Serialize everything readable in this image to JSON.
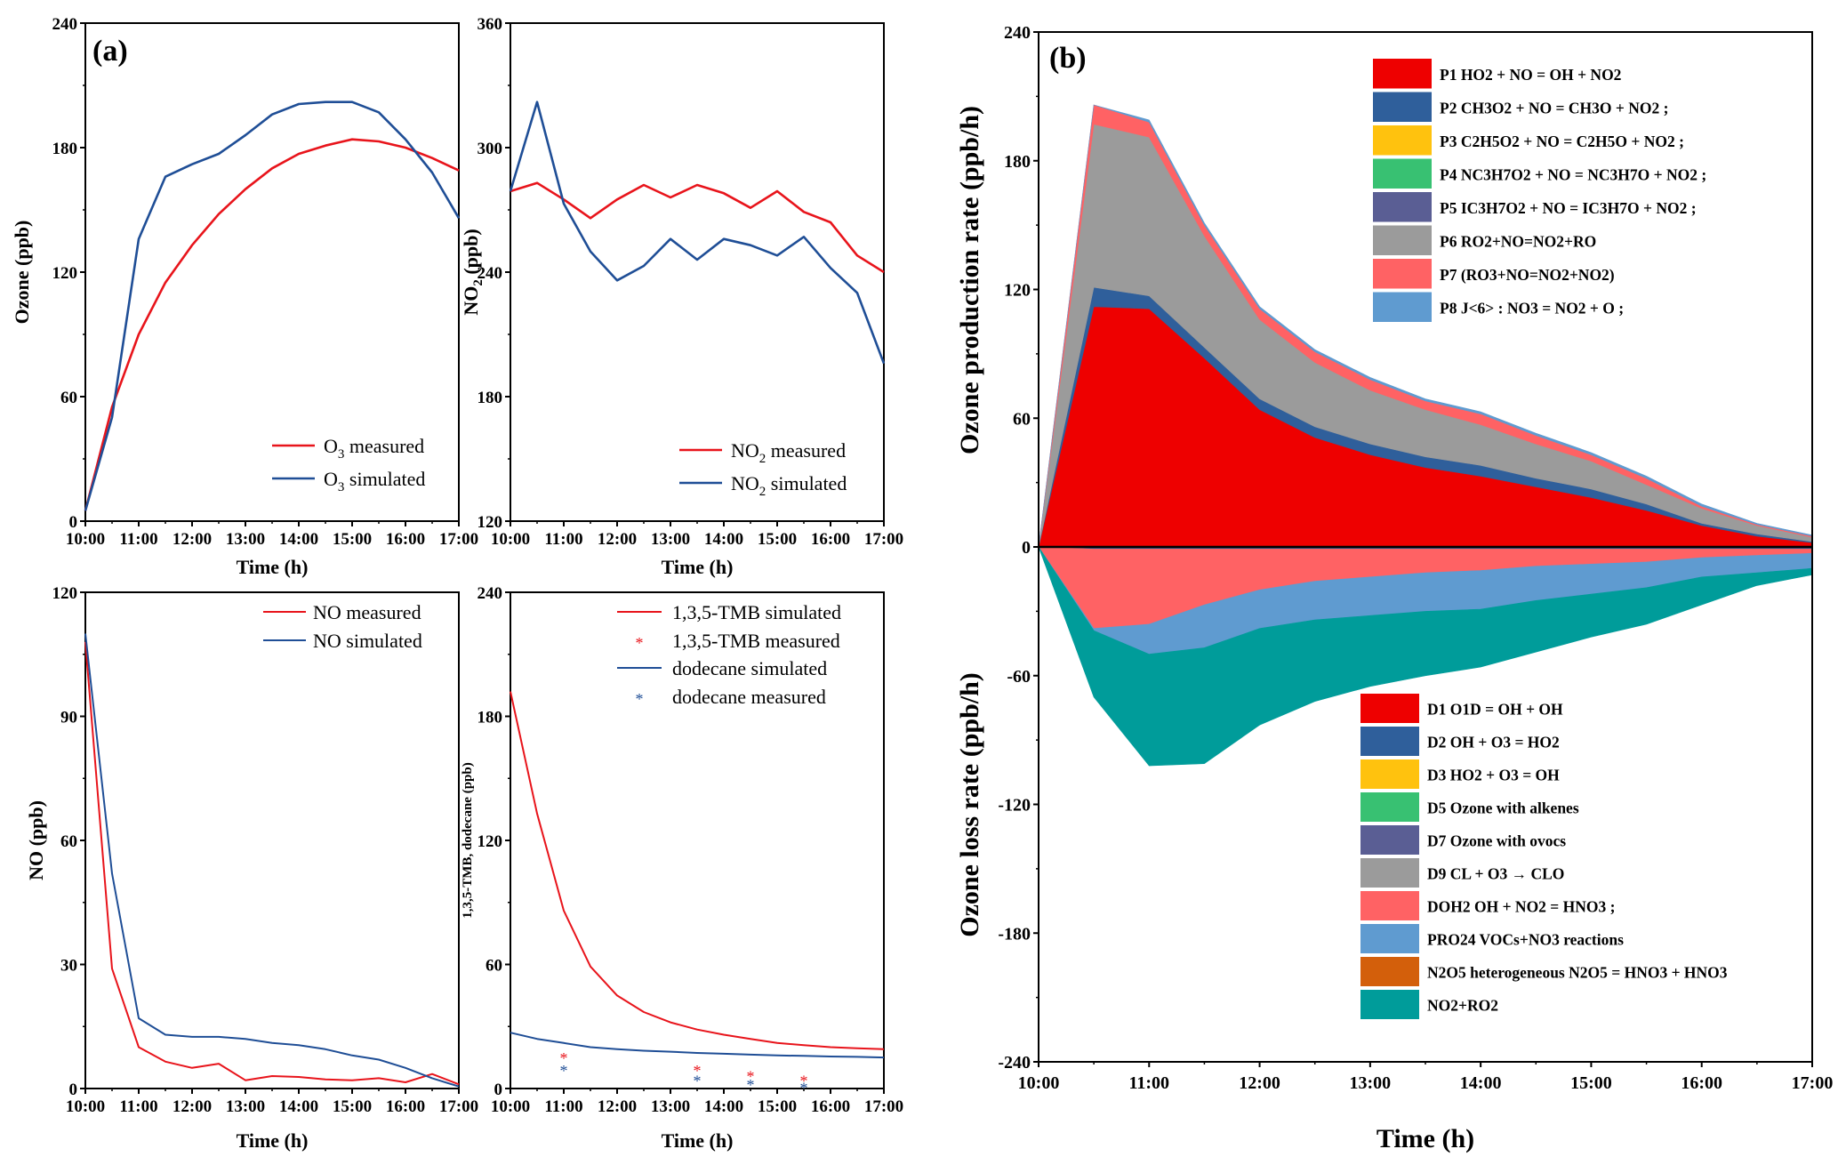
{
  "colors": {
    "red": "#e8141b",
    "blue": "#1f4e96",
    "P1": "#ee0000",
    "P2": "#2f5f9b",
    "P3": "#ffc20e",
    "P4": "#38c172",
    "P5": "#5a5e94",
    "P6": "#9b9b9b",
    "P7": "#ff6264",
    "P8": "#5f9bd0",
    "D1": "#ee0000",
    "D2": "#2f5f9b",
    "D3": "#ffc20e",
    "D5": "#38c172",
    "D7": "#5a5e94",
    "D9": "#9b9b9b",
    "DOH2": "#ff6264",
    "PRO24": "#5f9bd0",
    "N2O5": "#d35f0b",
    "NO2RO2": "#009c9a"
  },
  "time_ticks": [
    "10:00",
    "11:00",
    "12:00",
    "13:00",
    "14:00",
    "15:00",
    "16:00",
    "17:00"
  ],
  "chart_data": [
    {
      "id": "ozone",
      "panel_label": "(a)",
      "type": "line",
      "xlabel": "Time (h)",
      "ylabel": "Ozone (ppb)",
      "xlim": [
        10,
        17
      ],
      "ylim": [
        0,
        240
      ],
      "yticks": [
        "0",
        "60",
        "120",
        "180",
        "240"
      ],
      "series": [
        {
          "name": "O3 measured",
          "label_main": "O",
          "label_sub": "3",
          "label_rest": " measured",
          "color": "#e8141b",
          "x": [
            10,
            10.5,
            11,
            11.5,
            12,
            12.5,
            13,
            13.5,
            14,
            14.5,
            15,
            15.5,
            16,
            16.5,
            17
          ],
          "y": [
            5,
            55,
            90,
            115,
            133,
            148,
            160,
            170,
            177,
            181,
            184,
            183,
            180,
            175,
            169
          ]
        },
        {
          "name": "O3 simulated",
          "label_main": "O",
          "label_sub": "3",
          "label_rest": " simulated",
          "color": "#1f4e96",
          "x": [
            10,
            10.5,
            11,
            11.5,
            12,
            12.5,
            13,
            13.5,
            14,
            14.5,
            15,
            15.5,
            16,
            16.5,
            17
          ],
          "y": [
            5,
            50,
            136,
            166,
            172,
            177,
            186,
            196,
            201,
            202,
            202,
            197,
            184,
            168,
            146
          ]
        }
      ]
    },
    {
      "id": "no2",
      "type": "line",
      "xlabel": "Time (h)",
      "ylabel_main": "NO",
      "ylabel_sub": "2",
      "ylabel_rest": " (ppb)",
      "xlim": [
        10,
        17
      ],
      "ylim": [
        120,
        360
      ],
      "yticks": [
        "120",
        "180",
        "240",
        "300",
        "360"
      ],
      "series": [
        {
          "name": "NO2 measured",
          "label_main": "NO",
          "label_sub": "2",
          "label_rest": " measured",
          "color": "#e8141b",
          "x": [
            10,
            10.5,
            11,
            11.5,
            12,
            12.5,
            13,
            13.5,
            14,
            14.5,
            15,
            15.5,
            16,
            16.5,
            17
          ],
          "y": [
            279,
            283,
            275,
            266,
            275,
            282,
            276,
            282,
            278,
            271,
            279,
            269,
            264,
            248,
            240
          ]
        },
        {
          "name": "NO2 simulated",
          "label_main": "NO",
          "label_sub": "2",
          "label_rest": " simulated",
          "color": "#1f4e96",
          "x": [
            10,
            10.5,
            11,
            11.5,
            12,
            12.5,
            13,
            13.5,
            14,
            14.5,
            15,
            15.5,
            16,
            16.5,
            17
          ],
          "y": [
            279,
            322,
            273,
            250,
            236,
            243,
            256,
            246,
            256,
            253,
            248,
            257,
            242,
            230,
            196
          ]
        }
      ]
    },
    {
      "id": "no",
      "type": "line",
      "xlabel": "Time (h)",
      "ylabel": "NO (ppb)",
      "xlim": [
        10,
        17
      ],
      "ylim": [
        0,
        120
      ],
      "yticks": [
        "0",
        "30",
        "60",
        "90",
        "120"
      ],
      "series": [
        {
          "name": "NO measured",
          "color": "#e8141b",
          "x": [
            10,
            10.5,
            11,
            11.5,
            12,
            12.5,
            13,
            13.5,
            14,
            14.5,
            15,
            15.5,
            16,
            16.5,
            17
          ],
          "y": [
            108,
            29,
            10,
            6.5,
            5,
            6,
            2,
            3,
            2.8,
            2.2,
            2,
            2.5,
            1.5,
            3.5,
            1
          ]
        },
        {
          "name": "NO simulated",
          "color": "#1f4e96",
          "x": [
            10,
            10.5,
            11,
            11.5,
            12,
            12.5,
            13,
            13.5,
            14,
            14.5,
            15,
            15.5,
            16,
            16.5,
            17
          ],
          "y": [
            110,
            52,
            17,
            13,
            12.5,
            12.5,
            12,
            11,
            10.5,
            9.5,
            8,
            7,
            5,
            2.5,
            0.5
          ]
        }
      ]
    },
    {
      "id": "voc",
      "type": "line+scatter",
      "xlabel": "Time (h)",
      "ylabel": "1,3,5-TMB, dodecane (ppb)",
      "xlim": [
        10,
        17
      ],
      "ylim": [
        0,
        240
      ],
      "yticks": [
        "0",
        "60",
        "120",
        "180",
        "240"
      ],
      "series": [
        {
          "name": "1,3,5-TMB simulated",
          "color": "#e8141b",
          "kind": "line",
          "x": [
            10,
            10.5,
            11,
            11.5,
            12,
            12.5,
            13,
            13.5,
            14,
            14.5,
            15,
            15.5,
            16,
            16.5,
            17
          ],
          "y": [
            192,
            133,
            86,
            59,
            45,
            37,
            32,
            28.5,
            26,
            24,
            22,
            21,
            20,
            19.5,
            19
          ]
        },
        {
          "name": "1,3,5-TMB measured",
          "color": "#e8141b",
          "kind": "scatter",
          "x": [
            11,
            13.5,
            14.5,
            15.5
          ],
          "y": [
            16,
            10,
            7,
            5
          ]
        },
        {
          "name": "dodecane simulated",
          "color": "#1f4e96",
          "kind": "line",
          "x": [
            10,
            10.5,
            11,
            11.5,
            12,
            12.5,
            13,
            13.5,
            14,
            14.5,
            15,
            15.5,
            16,
            16.5,
            17
          ],
          "y": [
            27,
            24,
            22,
            20,
            19,
            18.3,
            17.8,
            17.2,
            16.8,
            16.4,
            16,
            15.8,
            15.5,
            15.3,
            15
          ]
        },
        {
          "name": "dodecane measured",
          "color": "#1f4e96",
          "kind": "scatter",
          "x": [
            11,
            13.5,
            14.5,
            15.5
          ],
          "y": [
            10,
            5,
            3,
            1.5
          ]
        }
      ]
    },
    {
      "id": "budget",
      "panel_label": "(b)",
      "type": "area",
      "xlabel": "Time (h)",
      "ylabel_top": "Ozone production rate (ppb/h)",
      "ylabel_bottom": "Ozone loss rate (ppb/h)",
      "xlim": [
        10,
        17
      ],
      "ylim": [
        -240,
        240
      ],
      "yticks": [
        "-240",
        "-180",
        "-120",
        "-60",
        "0",
        "60",
        "120",
        "180",
        "240"
      ],
      "x": [
        10,
        10.5,
        11,
        11.5,
        12,
        12.5,
        13,
        13.5,
        14,
        14.5,
        15,
        15.5,
        16,
        16.5,
        17
      ],
      "production": [
        {
          "key": "P1",
          "label": "P1 HO2 + NO = OH + NO2",
          "values": [
            0,
            112,
            111,
            88,
            64,
            51,
            43,
            37,
            33,
            28,
            23,
            17,
            10,
            5,
            2
          ]
        },
        {
          "key": "P2",
          "label": "P2  CH3O2 + NO = CH3O + NO2 ;",
          "values": [
            0,
            9,
            6,
            5,
            5,
            5,
            5,
            5,
            5,
            4,
            4,
            3,
            1,
            1,
            0.5
          ]
        },
        {
          "key": "P3",
          "label": "P3 C2H5O2 + NO = C2H5O + NO2 ;",
          "values": [
            0,
            0,
            0,
            0,
            0,
            0,
            0,
            0,
            0,
            0,
            0,
            0,
            0,
            0,
            0
          ]
        },
        {
          "key": "P4",
          "label": "P4 NC3H7O2 + NO = NC3H7O + NO2 ;",
          "values": [
            0,
            0,
            0,
            0,
            0,
            0,
            0,
            0,
            0,
            0,
            0,
            0,
            0,
            0,
            0
          ]
        },
        {
          "key": "P5",
          "label": "P5  IC3H7O2 + NO = IC3H7O + NO2 ;",
          "values": [
            0,
            0,
            0,
            0,
            0,
            0,
            0,
            0,
            0,
            0,
            0,
            0,
            0,
            0,
            0
          ]
        },
        {
          "key": "P6",
          "label": "P6 RO2+NO=NO2+RO",
          "values": [
            0,
            76,
            74,
            52,
            37,
            30,
            25,
            22,
            19,
            16,
            13,
            9,
            7,
            4,
            2
          ]
        },
        {
          "key": "P7",
          "label": "P7 (RO3+NO=NO2+NO2)",
          "values": [
            0,
            9,
            7,
            5,
            5,
            5,
            5,
            4,
            5,
            4,
            3,
            3,
            1,
            0.5,
            0.5
          ]
        },
        {
          "key": "P8",
          "label": "P8 J<6> : NO3 = NO2 + O ;",
          "values": [
            0,
            0,
            1,
            1,
            1,
            1,
            1,
            1,
            1,
            1,
            1,
            1,
            1,
            0.5,
            0.5
          ]
        }
      ],
      "loss": [
        {
          "key": "D1",
          "label": "D1 O1D = OH + OH",
          "values": [
            0,
            0,
            0,
            0,
            0,
            0,
            0,
            0,
            0,
            0,
            0,
            0,
            0,
            0,
            0
          ]
        },
        {
          "key": "D2",
          "label": "D2 OH + O3 = HO2",
          "values": [
            0,
            1,
            1,
            1,
            1,
            1,
            1,
            1,
            1,
            1,
            1,
            1,
            1,
            1,
            1
          ]
        },
        {
          "key": "D3",
          "label": "D3  HO2 + O3 = OH",
          "values": [
            0,
            0,
            0,
            0,
            0,
            0,
            0,
            0,
            0,
            0,
            0,
            0,
            0,
            0,
            0
          ]
        },
        {
          "key": "D5",
          "label": "D5 Ozone with alkenes",
          "values": [
            0,
            0,
            0,
            0,
            0,
            0,
            0,
            0,
            0,
            0,
            0,
            0,
            0,
            0,
            0
          ]
        },
        {
          "key": "D7",
          "label": "D7 Ozone with ovocs",
          "values": [
            0,
            0,
            0,
            0,
            0,
            0,
            0,
            0,
            0,
            0,
            0,
            0,
            0,
            0,
            0
          ]
        },
        {
          "key": "D9",
          "label": "D9 CL + O3 → CLO",
          "values": [
            0,
            0,
            0,
            0,
            0,
            0,
            0,
            0,
            0,
            0,
            0,
            0,
            0,
            0,
            0
          ]
        },
        {
          "key": "DOH2",
          "label": "DOH2 OH + NO2 = HNO3 ;",
          "values": [
            0,
            37,
            35,
            26,
            19,
            15,
            13,
            11,
            10,
            8,
            7,
            6,
            4,
            3,
            2
          ]
        },
        {
          "key": "PRO24",
          "label": "PRO24 VOCs+NO3 reactions",
          "values": [
            0,
            1,
            14,
            20,
            18,
            18,
            18,
            18,
            18,
            16,
            14,
            12,
            9,
            8,
            7
          ]
        },
        {
          "key": "N2O5",
          "label": "N2O5 heterogeneous N2O5 = HNO3 + HNO3",
          "values": [
            0,
            0,
            0,
            0,
            0,
            0,
            0,
            0,
            0,
            0,
            0,
            0,
            0,
            0,
            0
          ]
        },
        {
          "key": "NO2RO2",
          "label": "NO2+RO2",
          "values": [
            0,
            31,
            52,
            54,
            45,
            38,
            33,
            30,
            27,
            24,
            20,
            17,
            13,
            6,
            3
          ]
        }
      ]
    }
  ]
}
